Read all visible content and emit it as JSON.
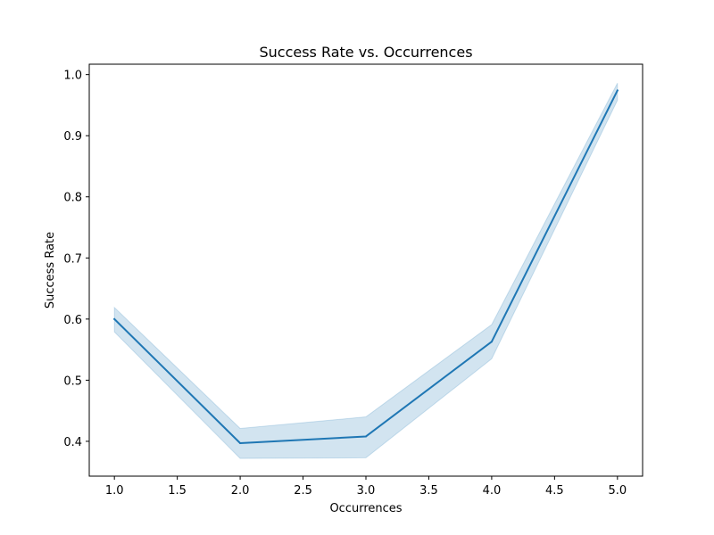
{
  "chart_data": {
    "type": "line",
    "title": "Success Rate vs. Occurrences",
    "xlabel": "Occurrences",
    "ylabel": "Success Rate",
    "xlim": [
      0.8,
      5.2
    ],
    "ylim": [
      0.343,
      1.017
    ],
    "xticks": [
      1.0,
      1.5,
      2.0,
      2.5,
      3.0,
      3.5,
      4.0,
      4.5,
      5.0
    ],
    "yticks": [
      0.4,
      0.5,
      0.6,
      0.7,
      0.8,
      0.9,
      1.0
    ],
    "xtick_labels": [
      "1.0",
      "1.5",
      "2.0",
      "2.5",
      "3.0",
      "3.5",
      "4.0",
      "4.5",
      "5.0"
    ],
    "ytick_labels": [
      "0.4",
      "0.5",
      "0.6",
      "0.7",
      "0.8",
      "0.9",
      "1.0"
    ],
    "grid": false,
    "series": [
      {
        "x": [
          1,
          2,
          3,
          4,
          5
        ],
        "y": [
          0.6,
          0.397,
          0.408,
          0.563,
          0.974
        ],
        "ci_low": [
          0.579,
          0.372,
          0.373,
          0.535,
          0.958
        ],
        "ci_high": [
          0.619,
          0.421,
          0.44,
          0.591,
          0.986
        ],
        "color": "#1f77b4",
        "band_color": "#1f77b4"
      }
    ]
  }
}
